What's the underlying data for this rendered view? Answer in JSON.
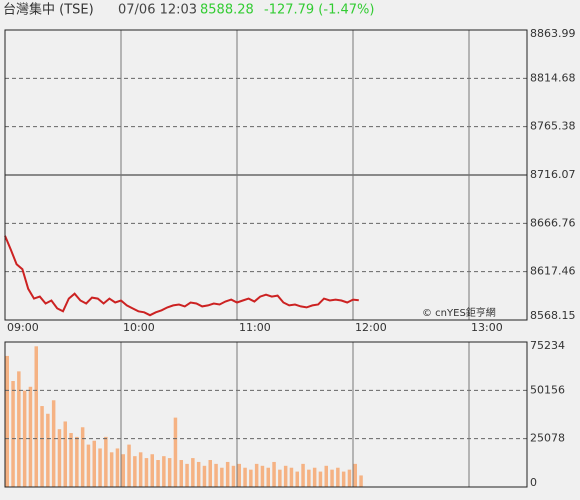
{
  "header": {
    "title": "台灣集中 (TSE)",
    "time": "07/06 12:03",
    "price": "8588.28",
    "change": "-127.79 (-1.47%)",
    "change_color": "#33cc33"
  },
  "chart_data": [
    {
      "type": "line",
      "annotation": "© cnYES鉅亨網",
      "color": "#cc2222",
      "x": [
        "09:00",
        "09:03",
        "09:06",
        "09:09",
        "09:12",
        "09:15",
        "09:18",
        "09:21",
        "09:24",
        "09:27",
        "09:30",
        "09:33",
        "09:36",
        "09:39",
        "09:42",
        "09:45",
        "09:48",
        "09:51",
        "09:54",
        "09:57",
        "10:00",
        "10:03",
        "10:06",
        "10:09",
        "10:12",
        "10:15",
        "10:18",
        "10:21",
        "10:24",
        "10:27",
        "10:30",
        "10:33",
        "10:36",
        "10:39",
        "10:42",
        "10:45",
        "10:48",
        "10:51",
        "10:54",
        "10:57",
        "11:00",
        "11:03",
        "11:06",
        "11:09",
        "11:12",
        "11:15",
        "11:18",
        "11:21",
        "11:24",
        "11:27",
        "11:30",
        "11:33",
        "11:36",
        "11:39",
        "11:42",
        "11:45",
        "11:48",
        "11:51",
        "11:54",
        "11:57",
        "12:00",
        "12:03"
      ],
      "values": [
        8654,
        8640,
        8625,
        8620,
        8600,
        8590,
        8592,
        8585,
        8588,
        8580,
        8577,
        8590,
        8595,
        8588,
        8585,
        8591,
        8590,
        8585,
        8590,
        8586,
        8588,
        8583,
        8580,
        8577,
        8576,
        8573,
        8576,
        8578,
        8581,
        8583,
        8584,
        8582,
        8586,
        8585,
        8582,
        8583,
        8585,
        8584,
        8587,
        8589,
        8586,
        8588,
        8590,
        8587,
        8592,
        8594,
        8592,
        8593,
        8586,
        8583,
        8584,
        8582,
        8581,
        8583,
        8584,
        8590,
        8588,
        8589,
        8588,
        8586,
        8589,
        8588.28
      ],
      "xlim": [
        "09:00",
        "13:30"
      ],
      "xticks": [
        "09:00",
        "10:00",
        "11:00",
        "12:00",
        "13:00"
      ],
      "ylim": [
        8568.15,
        8863.99
      ],
      "yticks": [
        8568.15,
        8617.46,
        8666.76,
        8716.07,
        8765.38,
        8814.68,
        8863.99
      ],
      "reference_line": 8716.07,
      "grid": true
    },
    {
      "type": "bar",
      "color": "#f5b283",
      "x": [
        "09:00",
        "09:03",
        "09:06",
        "09:09",
        "09:12",
        "09:15",
        "09:18",
        "09:21",
        "09:24",
        "09:27",
        "09:30",
        "09:33",
        "09:36",
        "09:39",
        "09:42",
        "09:45",
        "09:48",
        "09:51",
        "09:54",
        "09:57",
        "10:00",
        "10:03",
        "10:06",
        "10:09",
        "10:12",
        "10:15",
        "10:18",
        "10:21",
        "10:24",
        "10:27",
        "10:30",
        "10:33",
        "10:36",
        "10:39",
        "10:42",
        "10:45",
        "10:48",
        "10:51",
        "10:54",
        "10:57",
        "11:00",
        "11:03",
        "11:06",
        "11:09",
        "11:12",
        "11:15",
        "11:18",
        "11:21",
        "11:24",
        "11:27",
        "11:30",
        "11:33",
        "11:36",
        "11:39",
        "11:42",
        "11:45",
        "11:48",
        "11:51",
        "11:54",
        "11:57",
        "12:00",
        "12:03"
      ],
      "values": [
        68000,
        55000,
        60000,
        50000,
        52000,
        73000,
        42000,
        38000,
        45000,
        30000,
        34000,
        28000,
        26000,
        31000,
        22000,
        24000,
        20000,
        26000,
        18000,
        20000,
        17000,
        22000,
        16000,
        18000,
        15000,
        17000,
        14000,
        16000,
        15000,
        36000,
        14000,
        12000,
        15000,
        13000,
        11000,
        14000,
        12000,
        10000,
        13000,
        11000,
        12000,
        10000,
        9000,
        12000,
        11000,
        10000,
        13000,
        9000,
        11000,
        10000,
        8000,
        12000,
        9000,
        10000,
        8000,
        11000,
        9000,
        10000,
        8000,
        9000,
        12000,
        6000
      ],
      "xlim": [
        "09:00",
        "13:30"
      ],
      "ylim": [
        0,
        75234
      ],
      "yticks": [
        0,
        25078,
        50156,
        75234
      ],
      "grid": true
    }
  ]
}
